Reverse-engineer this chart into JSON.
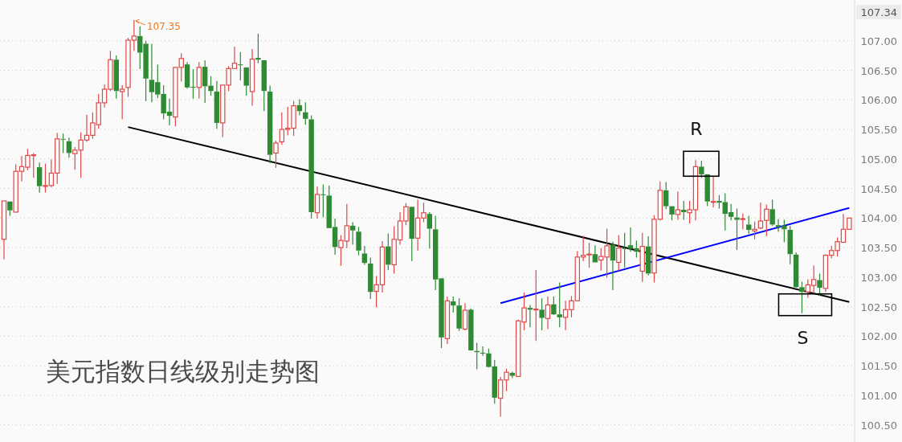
{
  "chart_data": {
    "type": "candlestick",
    "title": "美元指数日线级别走势图",
    "categories": [
      null,
      null,
      null,
      null,
      null,
      null,
      null,
      null,
      null,
      null,
      null,
      null,
      null,
      null,
      null,
      null,
      null,
      null,
      null,
      null,
      null,
      null,
      null,
      null,
      null,
      null,
      null,
      null,
      null,
      null,
      null,
      null,
      null,
      null,
      null,
      null,
      null,
      null,
      null,
      null,
      null,
      null,
      null,
      null,
      null,
      null,
      null,
      null,
      null,
      null,
      null,
      null,
      null,
      null,
      null,
      null,
      null,
      null,
      null,
      null,
      null,
      null,
      null,
      null,
      null,
      null,
      null,
      null,
      null,
      null,
      null,
      null,
      null,
      null,
      null,
      null,
      null,
      null,
      null,
      null,
      null,
      null,
      null,
      null,
      null,
      null,
      null,
      null,
      null,
      null,
      null,
      null,
      null,
      null,
      null,
      null,
      null,
      null,
      null,
      null,
      null,
      null,
      null,
      null,
      null,
      null,
      null,
      null,
      null,
      null,
      null,
      null,
      null,
      null,
      null,
      null,
      null,
      null,
      null,
      null,
      null,
      null,
      null,
      null,
      null,
      null,
      null,
      null,
      null,
      null,
      null,
      null,
      null,
      null,
      null,
      null,
      null,
      null,
      null,
      null,
      null,
      null,
      null,
      null
    ],
    "ohlc": [
      [
        103.64,
        104.29,
        103.3,
        104.29
      ],
      [
        104.28,
        104.28,
        104.04,
        104.13
      ],
      [
        104.1,
        104.91,
        104.1,
        104.79
      ],
      [
        104.79,
        105.05,
        104.62,
        104.87
      ],
      [
        104.86,
        105.17,
        104.81,
        105.06
      ],
      [
        105.06,
        105.1,
        104.68,
        105.07
      ],
      [
        104.86,
        104.94,
        104.43,
        104.54
      ],
      [
        104.54,
        104.92,
        104.43,
        104.55
      ],
      [
        104.55,
        104.99,
        104.52,
        104.76
      ],
      [
        104.76,
        105.44,
        104.58,
        105.34
      ],
      [
        105.34,
        105.43,
        105.1,
        105.33
      ],
      [
        105.3,
        105.36,
        105.02,
        105.1
      ],
      [
        105.09,
        105.2,
        104.82,
        105.15
      ],
      [
        105.15,
        105.45,
        104.68,
        105.32
      ],
      [
        105.32,
        105.75,
        105.29,
        105.4
      ],
      [
        105.4,
        105.79,
        105.34,
        105.61
      ],
      [
        105.58,
        106.1,
        105.51,
        105.95
      ],
      [
        105.95,
        106.26,
        105.87,
        106.18
      ],
      [
        106.18,
        106.83,
        106.15,
        106.68
      ],
      [
        106.68,
        106.75,
        106.02,
        106.15
      ],
      [
        106.14,
        106.25,
        105.67,
        106.18
      ],
      [
        106.21,
        107.05,
        106.05,
        107.01
      ],
      [
        107.01,
        107.35,
        106.83,
        107.08
      ],
      [
        107.08,
        107.24,
        106.52,
        106.8
      ],
      [
        106.95,
        107.0,
        105.98,
        106.36
      ],
      [
        106.34,
        106.95,
        105.96,
        106.13
      ],
      [
        106.3,
        106.6,
        106.03,
        106.09
      ],
      [
        106.1,
        106.25,
        105.67,
        105.77
      ],
      [
        105.8,
        106.02,
        105.57,
        105.73
      ],
      [
        105.71,
        106.55,
        105.55,
        106.55
      ],
      [
        106.55,
        106.79,
        106.31,
        106.7
      ],
      [
        106.6,
        106.64,
        106.19,
        106.21
      ],
      [
        106.22,
        106.52,
        106.02,
        106.21
      ],
      [
        106.21,
        106.64,
        106.02,
        106.55
      ],
      [
        106.56,
        106.67,
        105.95,
        106.23
      ],
      [
        106.24,
        106.4,
        106.07,
        106.15
      ],
      [
        106.14,
        106.32,
        105.51,
        105.61
      ],
      [
        105.61,
        106.25,
        105.37,
        106.25
      ],
      [
        106.25,
        106.57,
        106.15,
        106.53
      ],
      [
        106.53,
        106.9,
        106.53,
        106.62
      ],
      [
        106.6,
        106.81,
        106.33,
        106.59
      ],
      [
        106.55,
        106.55,
        106.07,
        106.24
      ],
      [
        106.14,
        106.86,
        105.9,
        106.69
      ],
      [
        106.71,
        107.12,
        106.62,
        106.68
      ],
      [
        106.67,
        106.67,
        105.81,
        106.15
      ],
      [
        106.14,
        106.24,
        104.93,
        105.07
      ],
      [
        105.1,
        105.31,
        104.85,
        105.27
      ],
      [
        105.29,
        105.79,
        105.24,
        105.5
      ],
      [
        105.5,
        105.88,
        105.4,
        105.52
      ],
      [
        105.52,
        105.98,
        105.39,
        105.9
      ],
      [
        105.91,
        106.01,
        105.74,
        105.81
      ],
      [
        105.79,
        105.96,
        105.58,
        105.68
      ],
      [
        105.67,
        105.74,
        103.99,
        104.1
      ],
      [
        104.09,
        104.53,
        103.99,
        104.4
      ],
      [
        104.4,
        104.57,
        104.01,
        104.39
      ],
      [
        104.38,
        104.55,
        103.83,
        103.83
      ],
      [
        103.85,
        103.99,
        103.38,
        103.51
      ],
      [
        103.5,
        103.71,
        103.19,
        103.62
      ],
      [
        103.61,
        104.24,
        103.49,
        103.87
      ],
      [
        103.87,
        103.93,
        103.55,
        103.79
      ],
      [
        103.77,
        103.85,
        103.37,
        103.45
      ],
      [
        103.4,
        103.53,
        103.21,
        103.24
      ],
      [
        103.23,
        103.33,
        102.63,
        102.75
      ],
      [
        102.76,
        103.02,
        102.49,
        102.87
      ],
      [
        102.87,
        103.61,
        102.74,
        103.51
      ],
      [
        103.52,
        103.74,
        103.12,
        103.21
      ],
      [
        103.21,
        103.86,
        103.06,
        103.64
      ],
      [
        103.63,
        104.1,
        103.55,
        103.95
      ],
      [
        103.95,
        104.25,
        103.88,
        104.19
      ],
      [
        104.19,
        104.19,
        103.27,
        103.65
      ],
      [
        103.66,
        104.31,
        103.45,
        104.0
      ],
      [
        104.0,
        104.26,
        103.93,
        104.09
      ],
      [
        104.07,
        104.1,
        103.48,
        103.82
      ],
      [
        103.81,
        104.04,
        102.78,
        102.96
      ],
      [
        102.98,
        102.98,
        101.8,
        101.98
      ],
      [
        101.96,
        102.67,
        101.87,
        102.6
      ],
      [
        102.59,
        102.67,
        102.4,
        102.52
      ],
      [
        102.52,
        102.64,
        102.09,
        102.13
      ],
      [
        102.12,
        102.56,
        102.1,
        102.44
      ],
      [
        102.45,
        102.47,
        101.76,
        101.76
      ],
      [
        101.75,
        101.89,
        101.44,
        101.73
      ],
      [
        101.72,
        101.83,
        101.67,
        101.71
      ],
      [
        101.71,
        101.79,
        101.47,
        101.48
      ],
      [
        101.49,
        101.6,
        100.86,
        100.96
      ],
      [
        100.95,
        101.31,
        100.64,
        101.26
      ],
      [
        101.26,
        101.45,
        101.07,
        101.39
      ],
      [
        101.38,
        101.4,
        101.29,
        101.33
      ],
      [
        101.32,
        102.28,
        101.31,
        102.26
      ],
      [
        102.24,
        102.74,
        102.1,
        102.48
      ],
      [
        102.48,
        102.53,
        102.15,
        102.45
      ],
      [
        102.45,
        103.12,
        101.92,
        102.46
      ],
      [
        102.45,
        102.64,
        102.1,
        102.31
      ],
      [
        102.3,
        102.67,
        102.12,
        102.53
      ],
      [
        102.54,
        102.67,
        102.36,
        102.37
      ],
      [
        102.37,
        102.91,
        102.15,
        102.32
      ],
      [
        102.32,
        102.6,
        102.1,
        102.45
      ],
      [
        102.45,
        102.68,
        102.32,
        102.6
      ],
      [
        102.6,
        103.44,
        102.6,
        103.34
      ],
      [
        103.34,
        103.7,
        103.27,
        103.37
      ],
      [
        103.38,
        103.58,
        103.16,
        103.39
      ],
      [
        103.39,
        103.54,
        103.25,
        103.25
      ],
      [
        103.29,
        103.49,
        103.11,
        103.35
      ],
      [
        103.34,
        103.82,
        102.99,
        103.53
      ],
      [
        103.55,
        103.6,
        102.78,
        103.28
      ],
      [
        103.25,
        103.71,
        103.11,
        103.49
      ],
      [
        103.49,
        103.75,
        103.16,
        103.48
      ],
      [
        103.54,
        103.84,
        103.43,
        103.48
      ],
      [
        103.49,
        103.62,
        103.33,
        103.43
      ],
      [
        103.1,
        103.75,
        102.92,
        103.52
      ],
      [
        103.52,
        103.69,
        103.03,
        103.06
      ],
      [
        103.07,
        104.05,
        102.91,
        103.98
      ],
      [
        103.98,
        104.62,
        103.96,
        104.47
      ],
      [
        104.47,
        104.61,
        104.15,
        104.2
      ],
      [
        104.2,
        104.2,
        103.96,
        104.06
      ],
      [
        104.06,
        104.45,
        103.97,
        104.14
      ],
      [
        104.14,
        104.29,
        103.97,
        104.1
      ],
      [
        104.09,
        104.29,
        103.91,
        104.14
      ],
      [
        104.14,
        104.98,
        103.96,
        104.87
      ],
      [
        104.87,
        104.97,
        104.68,
        104.74
      ],
      [
        104.74,
        104.74,
        104.2,
        104.28
      ],
      [
        104.27,
        104.7,
        104.18,
        104.28
      ],
      [
        104.29,
        104.39,
        104.16,
        104.26
      ],
      [
        104.27,
        104.42,
        103.79,
        104.07
      ],
      [
        104.1,
        104.24,
        103.96,
        104.02
      ],
      [
        104.01,
        104.16,
        103.46,
        103.97
      ],
      [
        103.98,
        104.08,
        103.81,
        103.99
      ],
      [
        103.89,
        104.04,
        103.73,
        103.8
      ],
      [
        103.78,
        103.94,
        103.64,
        103.81
      ],
      [
        103.83,
        104.26,
        103.81,
        103.95
      ],
      [
        103.96,
        104.23,
        103.69,
        104.15
      ],
      [
        104.15,
        104.31,
        103.87,
        103.89
      ],
      [
        103.88,
        103.98,
        103.77,
        103.85
      ],
      [
        103.87,
        103.97,
        103.59,
        103.81
      ],
      [
        103.8,
        103.87,
        103.22,
        103.39
      ],
      [
        103.38,
        103.42,
        102.82,
        102.83
      ],
      [
        102.83,
        102.92,
        102.39,
        102.75
      ],
      [
        102.75,
        102.96,
        102.65,
        102.87
      ],
      [
        102.86,
        103.2,
        102.72,
        102.96
      ],
      [
        102.95,
        103.06,
        102.68,
        102.82
      ],
      [
        102.81,
        103.39,
        102.75,
        103.37
      ],
      [
        103.37,
        103.53,
        103.32,
        103.45
      ],
      [
        103.45,
        103.67,
        103.35,
        103.6
      ],
      [
        103.59,
        104.07,
        103.58,
        103.81
      ],
      [
        103.81,
        104.0,
        103.81,
        104.0
      ]
    ],
    "colors": [
      "#e04848",
      "#2e8b34",
      "#e04848",
      "#e04848",
      "#e04848",
      "#e04848",
      "#2e8b34",
      "#e04848",
      "#e04848",
      "#e04848",
      "#2e8b34",
      "#2e8b34",
      "#e04848",
      "#e04848",
      "#e04848",
      "#e04848",
      "#e04848",
      "#e04848",
      "#e04848",
      "#2e8b34",
      "#e04848",
      "#e04848",
      "#e04848",
      "#2e8b34",
      "#2e8b34",
      "#2e8b34",
      "#2e8b34",
      "#2e8b34",
      "#2e8b34",
      "#e04848",
      "#e04848",
      "#2e8b34",
      "#2e8b34",
      "#e04848",
      "#2e8b34",
      "#2e8b34",
      "#2e8b34",
      "#e04848",
      "#e04848",
      "#e04848",
      "#2e8b34",
      "#2e8b34",
      "#e04848",
      "#2e8b34",
      "#2e8b34",
      "#2e8b34",
      "#e04848",
      "#e04848",
      "#e04848",
      "#e04848",
      "#2e8b34",
      "#2e8b34",
      "#2e8b34",
      "#e04848",
      "#2e8b34",
      "#2e8b34",
      "#2e8b34",
      "#e04848",
      "#e04848",
      "#2e8b34",
      "#2e8b34",
      "#2e8b34",
      "#2e8b34",
      "#e04848",
      "#e04848",
      "#2e8b34",
      "#e04848",
      "#e04848",
      "#e04848",
      "#2e8b34",
      "#e04848",
      "#e04848",
      "#2e8b34",
      "#2e8b34",
      "#2e8b34",
      "#e04848",
      "#2e8b34",
      "#2e8b34",
      "#e04848",
      "#2e8b34",
      "#2e8b34",
      "#2e8b34",
      "#2e8b34",
      "#2e8b34",
      "#e04848",
      "#e04848",
      "#2e8b34",
      "#e04848",
      "#e04848",
      "#2e8b34",
      "#e04848",
      "#2e8b34",
      "#e04848",
      "#2e8b34",
      "#2e8b34",
      "#e04848",
      "#e04848",
      "#e04848",
      "#e04848",
      "#e04848",
      "#2e8b34",
      "#e04848",
      "#e04848",
      "#2e8b34",
      "#e04848",
      "#2e8b34",
      "#2e8b34",
      "#2e8b34",
      "#e04848",
      "#2e8b34",
      "#e04848",
      "#e04848",
      "#2e8b34",
      "#2e8b34",
      "#e04848",
      "#2e8b34",
      "#e04848",
      "#e04848",
      "#2e8b34",
      "#2e8b34",
      "#e04848",
      "#2e8b34",
      "#2e8b34",
      "#2e8b34",
      "#2e8b34",
      "#e04848",
      "#2e8b34",
      "#e04848",
      "#e04848",
      "#e04848",
      "#2e8b34",
      "#2e8b34",
      "#2e8b34",
      "#2e8b34",
      "#2e8b34",
      "#2e8b34",
      "#e04848",
      "#e04848",
      "#2e8b34",
      "#e04848",
      "#e04848",
      "#e04848",
      "#e04848",
      "#e04848"
    ],
    "series": [
      {
        "type": "line",
        "color": "#000000",
        "values": [
          null,
          null,
          null,
          null,
          null,
          null,
          null,
          null,
          null,
          null,
          null,
          null,
          null,
          null,
          null,
          null,
          null,
          null,
          null,
          null,
          null,
          105.54,
          null,
          null,
          null,
          null,
          null,
          null,
          null,
          null,
          null,
          null,
          null,
          null,
          null,
          null,
          null,
          null,
          null,
          null,
          null,
          null,
          null,
          null,
          null,
          null,
          null,
          null,
          null,
          null,
          null,
          null,
          null,
          null,
          null,
          null,
          null,
          null,
          null,
          null,
          null,
          null,
          null,
          null,
          null,
          null,
          null,
          null,
          null,
          null,
          null,
          null,
          null,
          null,
          null,
          null,
          null,
          null,
          null,
          null,
          null,
          null,
          null,
          null,
          null,
          null,
          null,
          null,
          null,
          null,
          null,
          null,
          null,
          null,
          null,
          null,
          null,
          null,
          null,
          null,
          null,
          null,
          null,
          null,
          null,
          null,
          null,
          null,
          null,
          null,
          null,
          null,
          null,
          null,
          null,
          null,
          null,
          null,
          null,
          null,
          null,
          null,
          null,
          null,
          null,
          null,
          null,
          null,
          null,
          null,
          null,
          null,
          null,
          null,
          null,
          null,
          null,
          null,
          null,
          null,
          null,
          null,
          null,
          102.58
        ]
      },
      {
        "type": "line",
        "color": "#0000ff",
        "values": [
          null,
          null,
          null,
          null,
          null,
          null,
          null,
          null,
          null,
          null,
          null,
          null,
          null,
          null,
          null,
          null,
          null,
          null,
          null,
          null,
          null,
          null,
          null,
          null,
          null,
          null,
          null,
          null,
          null,
          null,
          null,
          null,
          null,
          null,
          null,
          null,
          null,
          null,
          null,
          null,
          null,
          null,
          null,
          null,
          null,
          null,
          null,
          null,
          null,
          null,
          null,
          null,
          null,
          null,
          null,
          null,
          null,
          null,
          null,
          null,
          null,
          null,
          null,
          null,
          null,
          null,
          null,
          null,
          null,
          null,
          null,
          null,
          null,
          null,
          null,
          null,
          null,
          null,
          null,
          null,
          null,
          null,
          null,
          null,
          102.56,
          null,
          null,
          null,
          null,
          null,
          null,
          null,
          null,
          null,
          null,
          null,
          null,
          null,
          null,
          null,
          null,
          null,
          null,
          null,
          null,
          null,
          null,
          null,
          null,
          null,
          null,
          null,
          null,
          null,
          null,
          null,
          null,
          null,
          null,
          null,
          null,
          null,
          null,
          null,
          null,
          null,
          null,
          null,
          null,
          null,
          null,
          null,
          null,
          null,
          null,
          null,
          null,
          null,
          null,
          null,
          null,
          null,
          null,
          104.17
        ]
      }
    ],
    "ylim": [
      100.21,
      107.69
    ],
    "yticks": [
      {
        "value": 100.5,
        "label": "100.50"
      },
      {
        "value": 101,
        "label": "101.00"
      },
      {
        "value": 101.5,
        "label": "101.50"
      },
      {
        "value": 102,
        "label": "102.00"
      },
      {
        "value": 102.5,
        "label": "102.50"
      },
      {
        "value": 103,
        "label": "103.00"
      },
      {
        "value": 103.5,
        "label": "103.50"
      },
      {
        "value": 104,
        "label": "104.00"
      },
      {
        "value": 104.5,
        "label": "104.50"
      },
      {
        "value": 105,
        "label": "105.00"
      },
      {
        "value": 105.5,
        "label": "105.50"
      },
      {
        "value": 106,
        "label": "106.00"
      },
      {
        "value": 106.5,
        "label": "106.50"
      },
      {
        "value": 107,
        "label": "107.00"
      }
    ],
    "tick_labels": "y",
    "grid": "y",
    "annotations": [
      "107.35",
      {
        "text": "R",
        "y": 104.98
      },
      {
        "text": "S",
        "y": 102.39
      },
      "107.34"
    ]
  }
}
